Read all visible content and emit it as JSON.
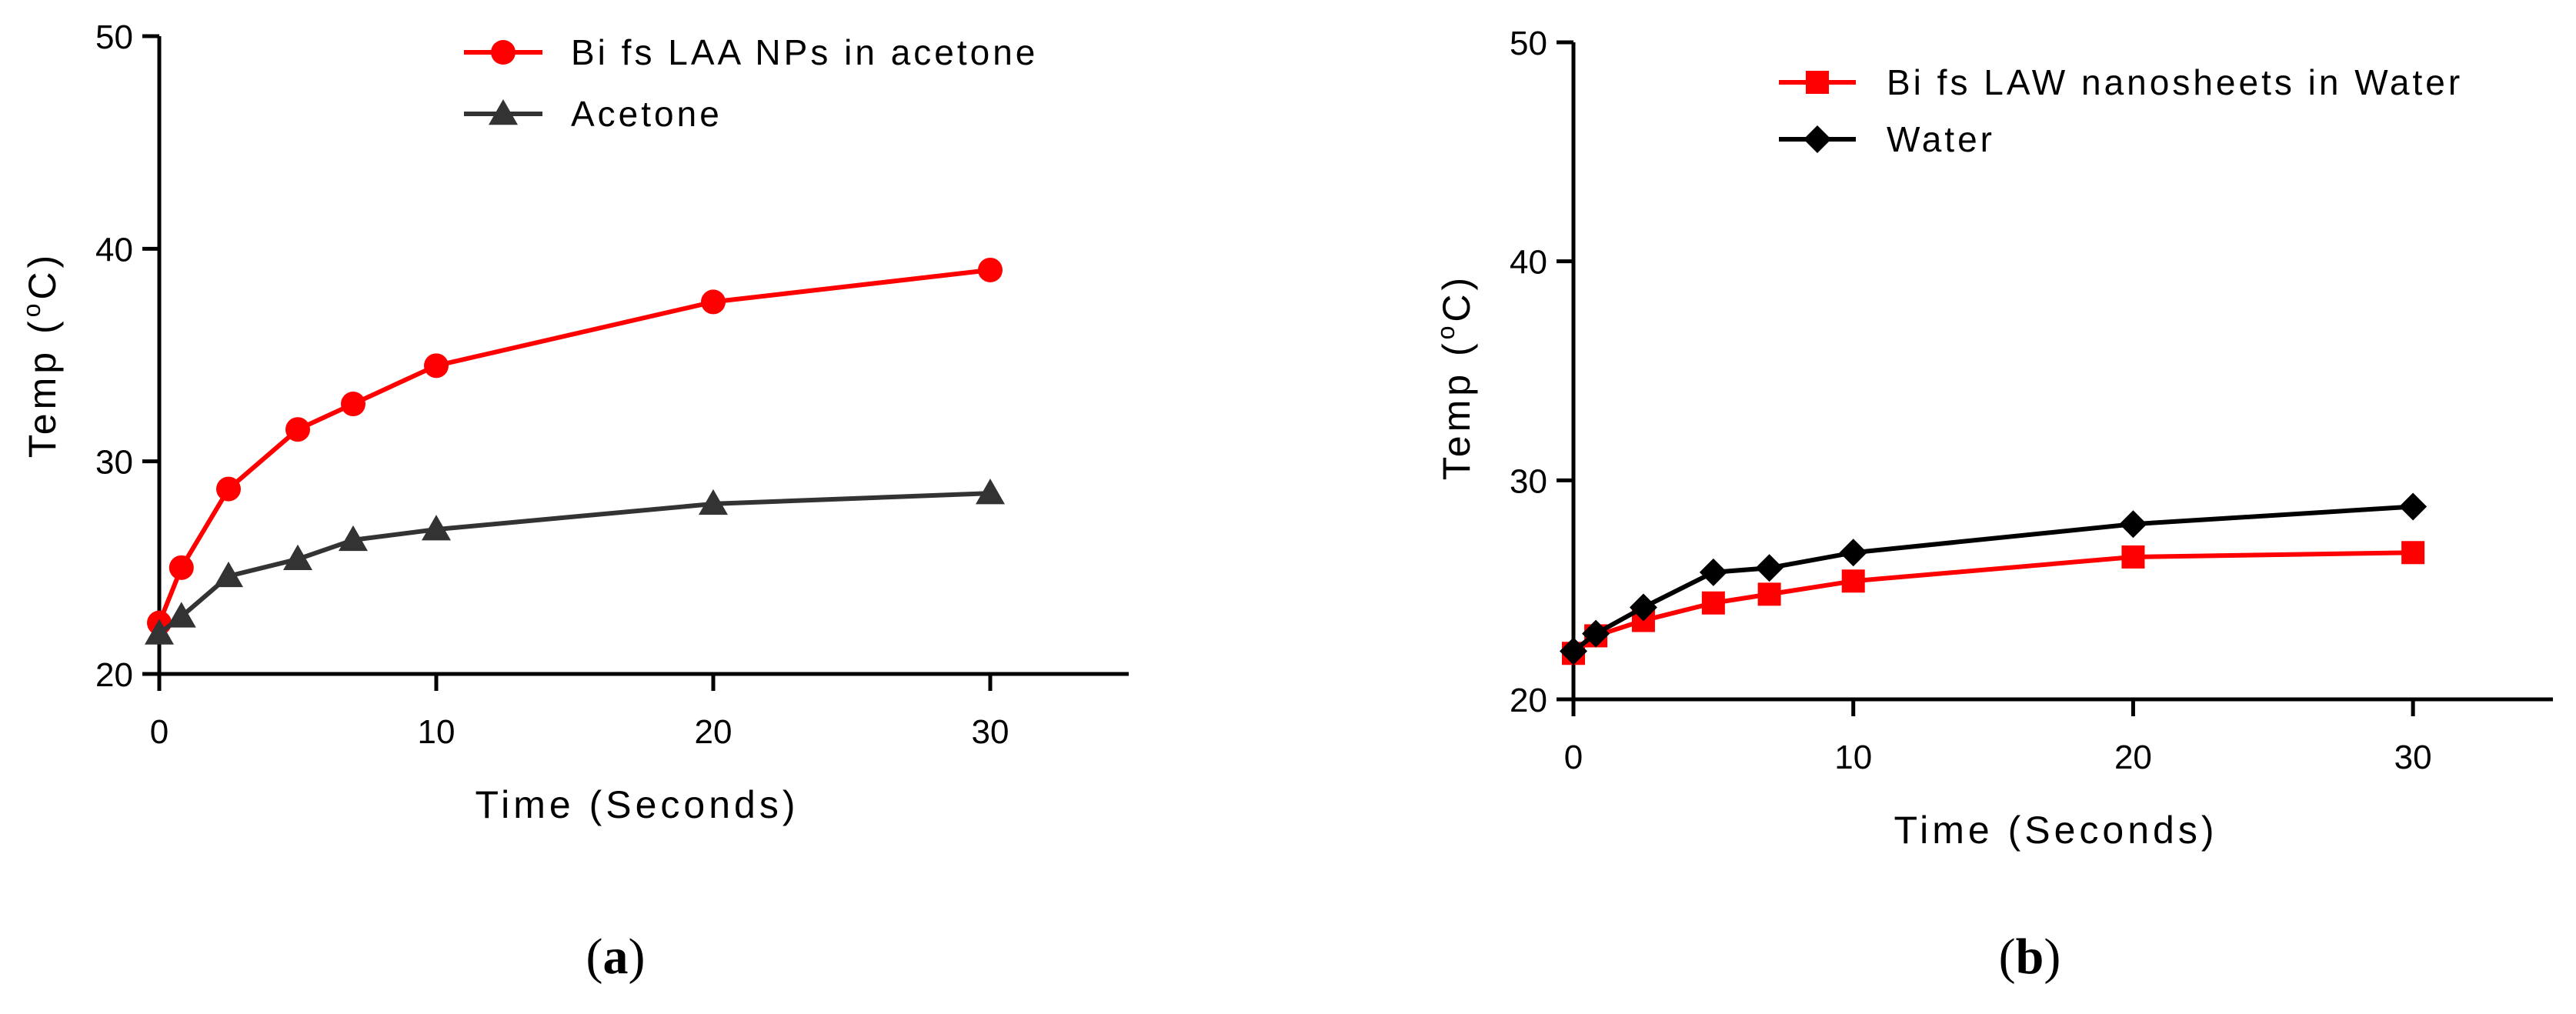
{
  "chart_data": [
    {
      "type": "line",
      "panel_label": "(a)",
      "panel_letter": "a",
      "xlabel": "Time (Seconds)",
      "ylabel_prefix": "Temp (",
      "ylabel_degree": "o",
      "ylabel_suffix": "C)",
      "xlim": [
        0,
        35
      ],
      "ylim": [
        20,
        50
      ],
      "xticks": [
        0,
        10,
        20,
        30
      ],
      "yticks": [
        20,
        30,
        40,
        50
      ],
      "xtick_labels": [
        "0",
        "10",
        "20",
        "30"
      ],
      "ytick_labels": [
        "20",
        "30",
        "40",
        "50"
      ],
      "legend_position": "top-right",
      "series": [
        {
          "name": "Bi fs LAA NPs in acetone",
          "marker": "circle",
          "color": "#ff0000",
          "x": [
            0,
            0.8,
            2.5,
            5,
            7,
            10,
            20,
            30
          ],
          "y": [
            22.4,
            25.0,
            28.7,
            31.5,
            32.7,
            34.5,
            37.5,
            39.0
          ]
        },
        {
          "name": "Acetone",
          "marker": "triangle",
          "color": "#333333",
          "x": [
            0,
            0.8,
            2.5,
            5,
            7,
            10,
            20,
            30
          ],
          "y": [
            21.9,
            22.7,
            24.6,
            25.4,
            26.3,
            26.8,
            28.0,
            28.5
          ]
        }
      ]
    },
    {
      "type": "line",
      "panel_label": "(b)",
      "panel_letter": "b",
      "xlabel": "Time (Seconds)",
      "ylabel_prefix": "Temp (",
      "ylabel_degree": "o",
      "ylabel_suffix": "C)",
      "xlim": [
        0,
        35
      ],
      "ylim": [
        20,
        50
      ],
      "xticks": [
        0,
        10,
        20,
        30
      ],
      "yticks": [
        20,
        30,
        40,
        50
      ],
      "xtick_labels": [
        "0",
        "10",
        "20",
        "30"
      ],
      "ytick_labels": [
        "20",
        "30",
        "40",
        "50"
      ],
      "legend_position": "top-right",
      "series": [
        {
          "name": "Bi fs LAW nanosheets in Water",
          "marker": "square",
          "color": "#ff0000",
          "x": [
            0,
            0.8,
            2.5,
            5,
            7,
            10,
            20,
            30
          ],
          "y": [
            22.1,
            22.9,
            23.6,
            24.4,
            24.8,
            25.4,
            26.5,
            26.7
          ]
        },
        {
          "name": "Water",
          "marker": "diamond",
          "color": "#000000",
          "x": [
            0,
            0.8,
            2.5,
            5,
            7,
            10,
            20,
            30
          ],
          "y": [
            22.2,
            23.0,
            24.2,
            25.8,
            26.0,
            26.7,
            28.0,
            28.8
          ]
        }
      ]
    }
  ]
}
